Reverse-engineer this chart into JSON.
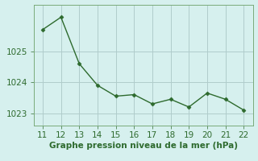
{
  "x": [
    11,
    12,
    13,
    14,
    15,
    16,
    17,
    18,
    19,
    20,
    21,
    22
  ],
  "y": [
    1025.7,
    1026.1,
    1024.6,
    1023.9,
    1023.55,
    1023.6,
    1023.3,
    1023.45,
    1023.2,
    1023.65,
    1023.45,
    1023.1
  ],
  "line_color": "#2d6a2d",
  "marker": "D",
  "marker_size": 2.5,
  "background_color": "#d6f0ee",
  "grid_color": "#b0cccb",
  "tick_label_color": "#2d6a2d",
  "xlabel": "Graphe pression niveau de la mer (hPa)",
  "xlabel_color": "#2d6a2d",
  "ylim": [
    1022.6,
    1026.5
  ],
  "yticks": [
    1023,
    1024,
    1025
  ],
  "xticks": [
    11,
    12,
    13,
    14,
    15,
    16,
    17,
    18,
    19,
    20,
    21,
    22
  ],
  "spine_color": "#7aaa7a",
  "font_size": 7.5
}
